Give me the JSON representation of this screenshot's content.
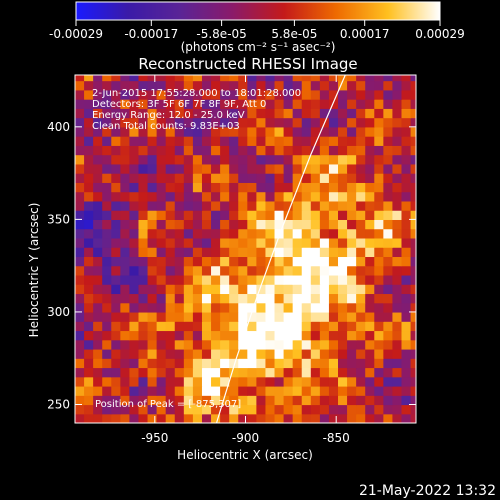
{
  "chart_data": {
    "type": "heatmap",
    "title": "Reconstructed RHESSI Image",
    "xlabel": "Heliocentric X (arcsec)",
    "ylabel": "Heliocentric Y (arcsec)",
    "xlim": [
      -994,
      -806
    ],
    "ylim": [
      240,
      428
    ],
    "xticks": [
      -950,
      -900,
      -850
    ],
    "xtick_labels": [
      "-950",
      "-900",
      "-850"
    ],
    "yticks": [
      250,
      300,
      350,
      400
    ],
    "ytick_labels": [
      "250",
      "300",
      "350",
      "400"
    ],
    "colorbar": {
      "range": [
        -0.00029,
        0.00029
      ],
      "ticks": [
        -0.00029,
        -0.00017,
        -5.8e-05,
        5.8e-05,
        0.00017,
        0.00029
      ],
      "tick_labels": [
        "-0.00029",
        "-0.00017",
        "-5.8e-05",
        "5.8e-05",
        "0.00017",
        "0.00029"
      ],
      "unit_label": "(photons cm⁻² s⁻¹ asec⁻²)",
      "colormap": "blue-purple-red-yellow-white"
    },
    "annotations": [
      "2-Jun-2015 17:55:28.000 to 18:01:28.000",
      "Detectors: 3F 5F 6F 7F 8F 9F, Att 0",
      "Energy Range: 12.0 - 25.0 keV",
      "Clean     Total counts: 9.83E+03"
    ],
    "peak_label": "Position of Peak = [-875,307]",
    "peak": {
      "x": -875,
      "y": 307
    },
    "source": {
      "x": -882,
      "y": 305,
      "peak_value": 0.00029
    },
    "limb_curve": [
      [
        -916,
        240
      ],
      [
        -905,
        275
      ],
      [
        -893,
        310
      ],
      [
        -880,
        345
      ],
      [
        -864,
        385
      ],
      [
        -845,
        428
      ]
    ]
  },
  "footer": {
    "timestamp": "21-May-2022 13:32"
  },
  "colors": {
    "background": "#000000",
    "text": "#ffffff",
    "colormap_stops": [
      "#1a1aff",
      "#3a1aa8",
      "#5a2496",
      "#8a1a6a",
      "#c41a1a",
      "#ee6a00",
      "#ffc020",
      "#ffffff"
    ]
  }
}
